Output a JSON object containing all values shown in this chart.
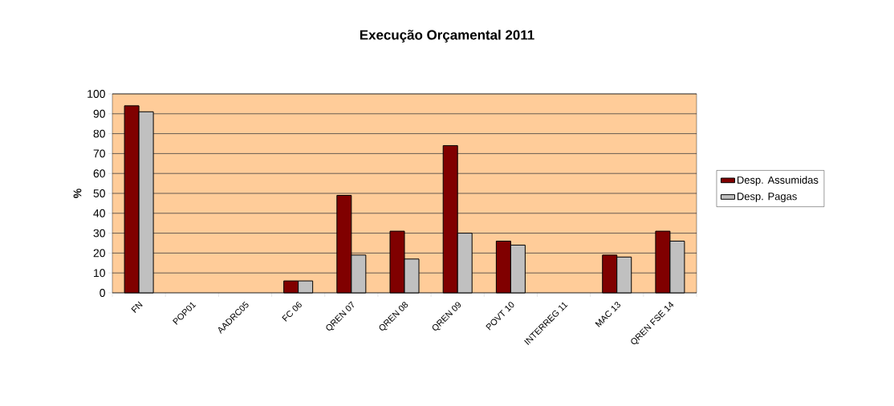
{
  "chart_data": {
    "type": "bar",
    "title": "Execução Orçamental 2011",
    "ylabel": "%",
    "categories": [
      "FN",
      "POP01",
      "AADRC05",
      "FC 06",
      "QREN 07",
      "QREN 08",
      "QREN 09",
      "POVT 10",
      "INTERREG 11",
      "MAC 13",
      "QREN FSE 14"
    ],
    "series": [
      {
        "name": "Desp. Assumidas",
        "color": "#800000",
        "values": [
          94,
          null,
          null,
          6,
          49,
          31,
          74,
          26,
          null,
          19,
          31
        ]
      },
      {
        "name": "Desp. Pagas",
        "color": "#c0c0c0",
        "values": [
          91,
          null,
          null,
          6,
          19,
          17,
          30,
          24,
          null,
          18,
          26
        ]
      }
    ],
    "ylim": [
      0,
      100
    ],
    "yticks": [
      0,
      10,
      20,
      30,
      40,
      50,
      60,
      70,
      80,
      90,
      100
    ],
    "grid": "y",
    "legend": "right"
  }
}
